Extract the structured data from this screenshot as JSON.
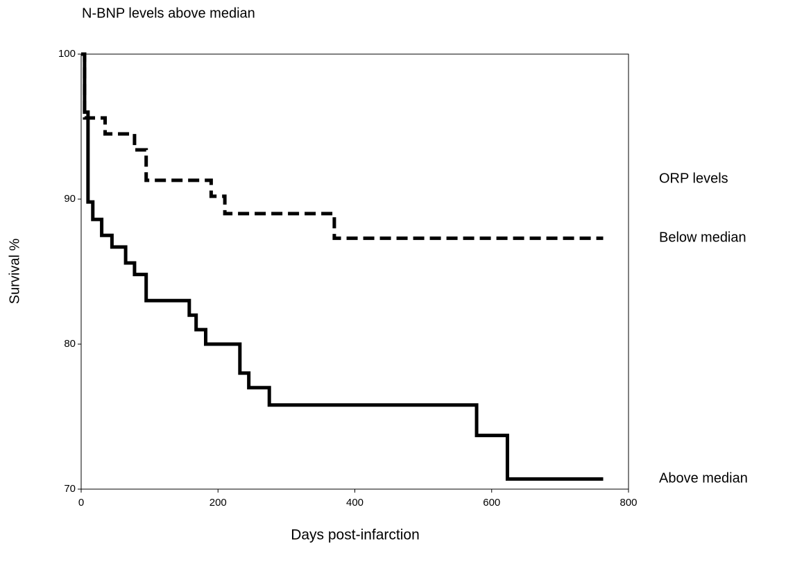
{
  "chart_data": {
    "type": "line",
    "step": true,
    "title": "N-BNP levels above median",
    "x_label": "Days post-infarction",
    "y_label": "Survival %",
    "legend_title": "ORP levels",
    "xlim": [
      0,
      800
    ],
    "xticks": [
      0,
      200,
      400,
      600,
      800
    ],
    "ylim": [
      70,
      100
    ],
    "yticks": [
      70,
      80,
      90,
      100
    ],
    "grid": false,
    "series": [
      {
        "name": "Below median",
        "color": "#000000",
        "dash": true,
        "x": [
          0,
          5,
          35,
          78,
          95,
          190,
          210,
          370,
          763
        ],
        "values": [
          100,
          95.6,
          94.5,
          93.4,
          91.3,
          90.2,
          89.0,
          87.3,
          87.3
        ]
      },
      {
        "name": "Above median",
        "color": "#000000",
        "dash": false,
        "x": [
          0,
          5,
          10,
          17,
          30,
          45,
          65,
          78,
          95,
          158,
          168,
          182,
          232,
          245,
          275,
          578,
          623,
          763
        ],
        "values": [
          100,
          96,
          89.8,
          88.6,
          87.5,
          86.7,
          85.6,
          84.8,
          83.0,
          82.0,
          81.0,
          80.0,
          78.0,
          77.0,
          75.8,
          73.7,
          70.7,
          70.7
        ]
      }
    ]
  }
}
